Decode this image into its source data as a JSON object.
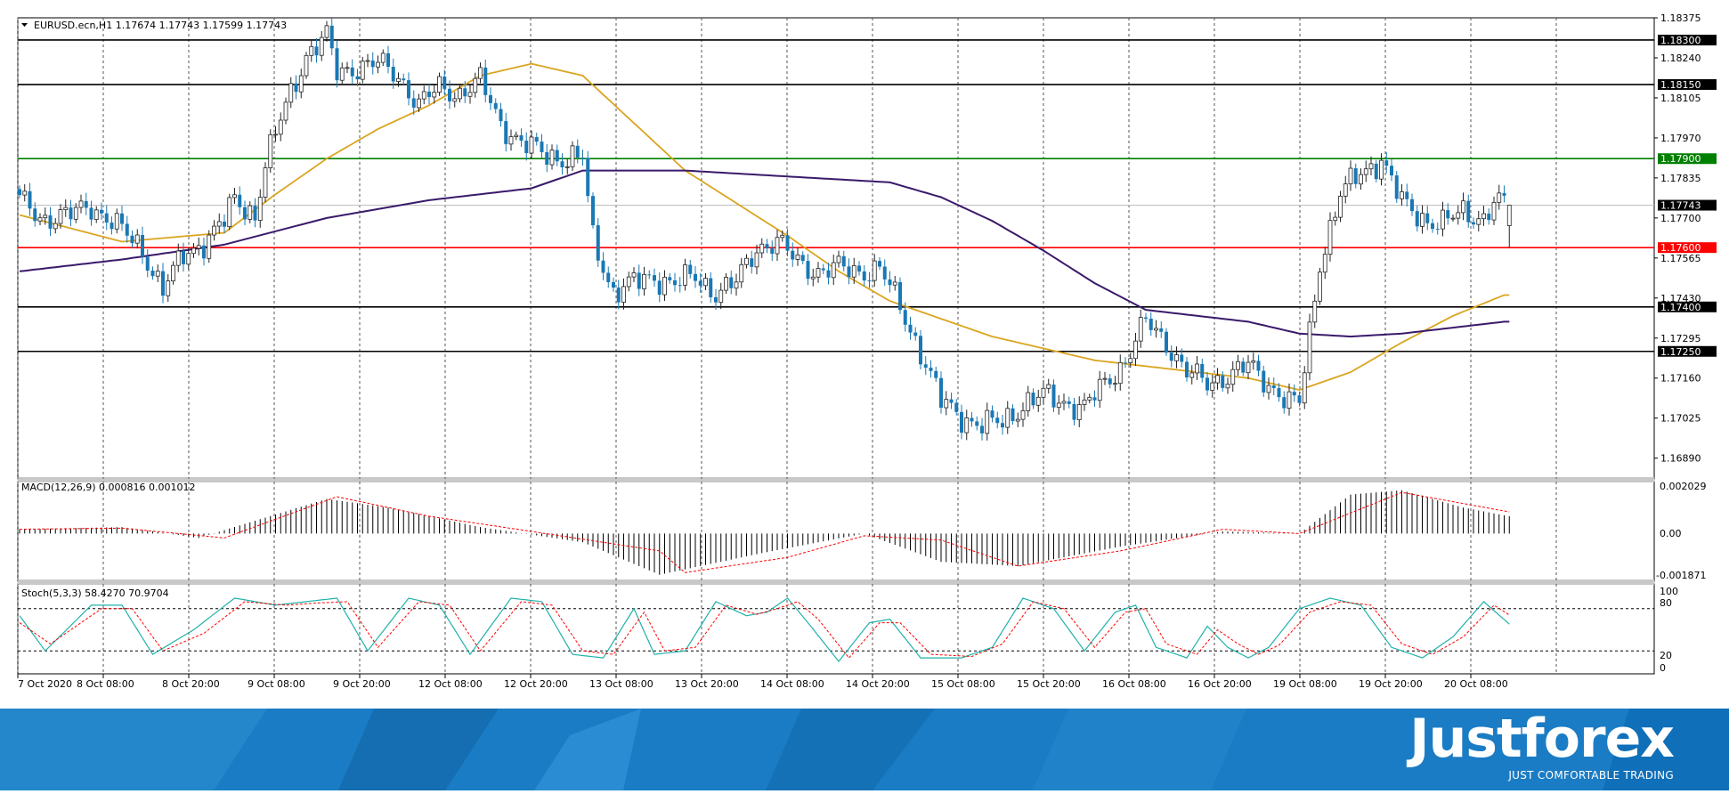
{
  "main_panel": {
    "header": "EURUSD.ecn,H1  1.17674 1.17743 1.17599 1.17743"
  },
  "macd_panel": {
    "header": "MACD(12,26,9) 0.000816 0.001012",
    "y_ticks": [
      "0.002029",
      "0.00",
      "-0.001871"
    ]
  },
  "stoch_panel": {
    "header": "Stoch(5,3,3) 58.4270 70.9704",
    "y_ticks": [
      "100",
      "80",
      "20",
      "0"
    ]
  },
  "brand": {
    "logo_text": "Justforex",
    "tagline": "JUST COMFORTABLE TRADING"
  },
  "colors": {
    "up_candle": "#ffffff",
    "down_candle": "#1a78b4",
    "ma_fast": "#daa520",
    "ma_slow": "#3a1a6a",
    "resistance": "#000000",
    "green_level": "#008000",
    "red_level": "#ff0000",
    "macd_signal": "#ff0000",
    "stoch_main": "#20b2aa",
    "stoch_signal": "#ff0000",
    "banner": "#1a7cc4"
  },
  "chart_data": {
    "type": "candlestick",
    "symbol": "EURUSD.ecn",
    "timeframe": "H1",
    "ohlc_current": {
      "open": 1.17674,
      "high": 1.17743,
      "low": 1.17599,
      "close": 1.17743
    },
    "ylim": [
      1.1682,
      1.18375
    ],
    "y_ticks": [
      1.18375,
      1.1824,
      1.18105,
      1.1797,
      1.17835,
      1.177,
      1.17565,
      1.1743,
      1.17295,
      1.1716,
      1.17025,
      1.1689
    ],
    "x_labels": [
      "7 Oct 2020",
      "8 Oct 08:00",
      "8 Oct 20:00",
      "9 Oct 08:00",
      "9 Oct 20:00",
      "12 Oct 08:00",
      "12 Oct 20:00",
      "13 Oct 08:00",
      "13 Oct 20:00",
      "14 Oct 08:00",
      "14 Oct 20:00",
      "15 Oct 08:00",
      "15 Oct 20:00",
      "16 Oct 08:00",
      "16 Oct 20:00",
      "19 Oct 08:00",
      "19 Oct 20:00",
      "20 Oct 08:00"
    ],
    "horizontal_levels": [
      {
        "value": 1.183,
        "label": "1.18300",
        "kind": "black"
      },
      {
        "value": 1.1815,
        "label": "1.18150",
        "kind": "black"
      },
      {
        "value": 1.179,
        "label": "1.17900",
        "kind": "green"
      },
      {
        "value": 1.17743,
        "label": "1.17743",
        "kind": "price"
      },
      {
        "value": 1.176,
        "label": "1.17600",
        "kind": "red"
      },
      {
        "value": 1.174,
        "label": "1.17400",
        "kind": "black"
      },
      {
        "value": 1.1725,
        "label": "1.17250",
        "kind": "black"
      }
    ],
    "path_anchors": [
      [
        0,
        1.1776
      ],
      [
        4,
        1.177
      ],
      [
        10,
        1.1771
      ],
      [
        14,
        1.1774
      ],
      [
        18,
        1.1769
      ],
      [
        24,
        1.1759
      ],
      [
        28,
        1.1746
      ],
      [
        32,
        1.1757
      ],
      [
        36,
        1.1762
      ],
      [
        40,
        1.1769
      ],
      [
        42,
        1.1776
      ],
      [
        46,
        1.1771
      ],
      [
        48,
        1.1788
      ],
      [
        52,
        1.1808
      ],
      [
        56,
        1.1825
      ],
      [
        60,
        1.1831
      ],
      [
        62,
        1.1819
      ],
      [
        66,
        1.1821
      ],
      [
        70,
        1.1822
      ],
      [
        74,
        1.1818
      ],
      [
        78,
        1.1808
      ],
      [
        82,
        1.1814
      ],
      [
        86,
        1.1812
      ],
      [
        90,
        1.1816
      ],
      [
        94,
        1.1802
      ],
      [
        98,
        1.1795
      ],
      [
        102,
        1.1792
      ],
      [
        106,
        1.179
      ],
      [
        110,
        1.179
      ],
      [
        112,
        1.1763
      ],
      [
        116,
        1.1745
      ],
      [
        120,
        1.1748
      ],
      [
        124,
        1.175
      ],
      [
        128,
        1.1748
      ],
      [
        132,
        1.175
      ],
      [
        136,
        1.1745
      ],
      [
        140,
        1.1748
      ],
      [
        144,
        1.176
      ],
      [
        148,
        1.1762
      ],
      [
        152,
        1.1755
      ],
      [
        156,
        1.1752
      ],
      [
        160,
        1.1753
      ],
      [
        164,
        1.1752
      ],
      [
        168,
        1.1753
      ],
      [
        172,
        1.174
      ],
      [
        176,
        1.1725
      ],
      [
        180,
        1.1708
      ],
      [
        184,
        1.1703
      ],
      [
        188,
        1.17
      ],
      [
        192,
        1.1701
      ],
      [
        196,
        1.1707
      ],
      [
        200,
        1.171
      ],
      [
        204,
        1.1708
      ],
      [
        208,
        1.1706
      ],
      [
        212,
        1.1714
      ],
      [
        216,
        1.1722
      ],
      [
        220,
        1.1735
      ],
      [
        224,
        1.1728
      ],
      [
        228,
        1.1718
      ],
      [
        232,
        1.1714
      ],
      [
        236,
        1.1717
      ],
      [
        240,
        1.172
      ],
      [
        244,
        1.1714
      ],
      [
        248,
        1.1708
      ],
      [
        250,
        1.1707
      ],
      [
        254,
        1.1755
      ],
      [
        258,
        1.1778
      ],
      [
        262,
        1.1785
      ],
      [
        266,
        1.179
      ],
      [
        270,
        1.1775
      ],
      [
        274,
        1.177
      ],
      [
        278,
        1.1768
      ],
      [
        282,
        1.1772
      ],
      [
        286,
        1.177
      ],
      [
        288,
        1.1775
      ],
      [
        291,
        1.17743
      ]
    ],
    "ma_fast": [
      [
        0,
        1.1771
      ],
      [
        20,
        1.1762
      ],
      [
        40,
        1.1765
      ],
      [
        50,
        1.1778
      ],
      [
        60,
        1.179
      ],
      [
        70,
        1.18
      ],
      [
        80,
        1.1808
      ],
      [
        90,
        1.1818
      ],
      [
        100,
        1.1822
      ],
      [
        110,
        1.1818
      ],
      [
        120,
        1.1802
      ],
      [
        130,
        1.1786
      ],
      [
        140,
        1.1775
      ],
      [
        150,
        1.1764
      ],
      [
        160,
        1.1752
      ],
      [
        170,
        1.1742
      ],
      [
        180,
        1.1736
      ],
      [
        190,
        1.173
      ],
      [
        200,
        1.1726
      ],
      [
        210,
        1.1722
      ],
      [
        220,
        1.172
      ],
      [
        230,
        1.1718
      ],
      [
        240,
        1.1716
      ],
      [
        250,
        1.1712
      ],
      [
        260,
        1.1718
      ],
      [
        270,
        1.1728
      ],
      [
        280,
        1.1737
      ],
      [
        290,
        1.1744
      ]
    ],
    "ma_slow": [
      [
        0,
        1.1752
      ],
      [
        20,
        1.1756
      ],
      [
        40,
        1.1761
      ],
      [
        60,
        1.177
      ],
      [
        80,
        1.1776
      ],
      [
        100,
        1.178
      ],
      [
        110,
        1.1786
      ],
      [
        130,
        1.1786
      ],
      [
        150,
        1.1784
      ],
      [
        170,
        1.1782
      ],
      [
        180,
        1.1777
      ],
      [
        190,
        1.1769
      ],
      [
        200,
        1.1759
      ],
      [
        210,
        1.1748
      ],
      [
        220,
        1.1739
      ],
      [
        230,
        1.1737
      ],
      [
        240,
        1.1735
      ],
      [
        250,
        1.1731
      ],
      [
        260,
        1.173
      ],
      [
        270,
        1.1731
      ],
      [
        280,
        1.1733
      ],
      [
        290,
        1.1735
      ]
    ],
    "macd": {
      "ylim": [
        -0.0022,
        0.0024
      ],
      "main_anchors": [
        [
          0,
          0.0002
        ],
        [
          20,
          0.0003
        ],
        [
          35,
          -0.0002
        ],
        [
          60,
          0.0016
        ],
        [
          72,
          0.0012
        ],
        [
          90,
          0.0003
        ],
        [
          110,
          -0.0004
        ],
        [
          125,
          -0.0019
        ],
        [
          145,
          -0.0009
        ],
        [
          165,
          0.0
        ],
        [
          180,
          -0.0013
        ],
        [
          195,
          -0.0015
        ],
        [
          215,
          -0.0006
        ],
        [
          235,
          0.0001
        ],
        [
          250,
          0.0
        ],
        [
          260,
          0.0018
        ],
        [
          270,
          0.002
        ],
        [
          282,
          0.0012
        ],
        [
          291,
          0.0008
        ]
      ],
      "signal_anchors": [
        [
          0,
          0.0002
        ],
        [
          20,
          0.00025
        ],
        [
          40,
          -0.0002
        ],
        [
          62,
          0.0017
        ],
        [
          80,
          0.0008
        ],
        [
          100,
          0.0001
        ],
        [
          125,
          -0.0008
        ],
        [
          130,
          -0.0018
        ],
        [
          150,
          -0.0011
        ],
        [
          165,
          -0.0001
        ],
        [
          180,
          -0.0003
        ],
        [
          195,
          -0.0015
        ],
        [
          215,
          -0.0008
        ],
        [
          235,
          0.0002
        ],
        [
          250,
          0.0
        ],
        [
          270,
          0.0019
        ],
        [
          291,
          0.001
        ]
      ]
    },
    "stochastic": {
      "ylim": [
        0,
        100
      ],
      "levels": [
        80,
        20
      ],
      "main_anchors": [
        [
          0,
          70
        ],
        [
          5,
          20
        ],
        [
          14,
          85
        ],
        [
          20,
          85
        ],
        [
          26,
          15
        ],
        [
          34,
          50
        ],
        [
          42,
          95
        ],
        [
          50,
          85
        ],
        [
          56,
          90
        ],
        [
          62,
          95
        ],
        [
          68,
          20
        ],
        [
          76,
          95
        ],
        [
          82,
          85
        ],
        [
          88,
          15
        ],
        [
          96,
          95
        ],
        [
          102,
          90
        ],
        [
          108,
          15
        ],
        [
          114,
          10
        ],
        [
          120,
          80
        ],
        [
          124,
          15
        ],
        [
          130,
          20
        ],
        [
          136,
          90
        ],
        [
          142,
          70
        ],
        [
          146,
          75
        ],
        [
          150,
          95
        ],
        [
          154,
          60
        ],
        [
          160,
          5
        ],
        [
          166,
          60
        ],
        [
          170,
          65
        ],
        [
          176,
          10
        ],
        [
          184,
          10
        ],
        [
          190,
          25
        ],
        [
          196,
          95
        ],
        [
          202,
          80
        ],
        [
          208,
          20
        ],
        [
          214,
          75
        ],
        [
          218,
          85
        ],
        [
          222,
          25
        ],
        [
          228,
          10
        ],
        [
          232,
          55
        ],
        [
          236,
          25
        ],
        [
          240,
          10
        ],
        [
          244,
          25
        ],
        [
          250,
          80
        ],
        [
          256,
          95
        ],
        [
          262,
          85
        ],
        [
          268,
          25
        ],
        [
          274,
          10
        ],
        [
          280,
          40
        ],
        [
          286,
          90
        ],
        [
          291,
          58
        ]
      ],
      "signal_anchors": [
        [
          0,
          60
        ],
        [
          6,
          30
        ],
        [
          16,
          80
        ],
        [
          22,
          80
        ],
        [
          28,
          20
        ],
        [
          36,
          45
        ],
        [
          44,
          90
        ],
        [
          52,
          85
        ],
        [
          58,
          88
        ],
        [
          64,
          90
        ],
        [
          70,
          25
        ],
        [
          78,
          90
        ],
        [
          84,
          85
        ],
        [
          90,
          20
        ],
        [
          98,
          90
        ],
        [
          104,
          85
        ],
        [
          110,
          20
        ],
        [
          116,
          15
        ],
        [
          122,
          75
        ],
        [
          126,
          20
        ],
        [
          132,
          25
        ],
        [
          138,
          85
        ],
        [
          144,
          72
        ],
        [
          148,
          80
        ],
        [
          152,
          90
        ],
        [
          156,
          65
        ],
        [
          162,
          10
        ],
        [
          168,
          60
        ],
        [
          172,
          60
        ],
        [
          178,
          15
        ],
        [
          186,
          12
        ],
        [
          192,
          30
        ],
        [
          198,
          90
        ],
        [
          204,
          80
        ],
        [
          210,
          25
        ],
        [
          216,
          75
        ],
        [
          220,
          80
        ],
        [
          224,
          30
        ],
        [
          230,
          15
        ],
        [
          234,
          50
        ],
        [
          238,
          30
        ],
        [
          242,
          15
        ],
        [
          246,
          28
        ],
        [
          252,
          75
        ],
        [
          258,
          90
        ],
        [
          264,
          85
        ],
        [
          270,
          30
        ],
        [
          276,
          15
        ],
        [
          282,
          40
        ],
        [
          288,
          85
        ],
        [
          291,
          71
        ]
      ]
    }
  }
}
